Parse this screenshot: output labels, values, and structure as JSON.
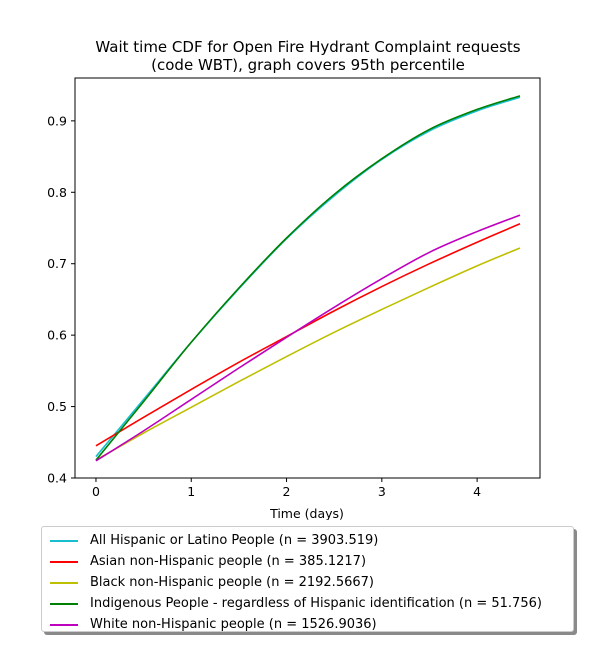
{
  "chart_data": {
    "type": "line",
    "title_line1": "Wait time CDF for Open Fire Hydrant Complaint  requests",
    "title_line2": "(code WBT), graph covers 95th percentile",
    "xlabel": "Time (days)",
    "ylabel": "",
    "xlim": [
      -0.22,
      4.66
    ],
    "ylim": [
      0.4,
      0.96
    ],
    "xticks": [
      0,
      1,
      2,
      3,
      4
    ],
    "yticks": [
      0.4,
      0.5,
      0.6,
      0.7,
      0.8,
      0.9
    ],
    "legend_position": "below",
    "x": [
      0,
      0.5,
      1,
      1.5,
      2,
      2.5,
      3,
      3.5,
      4,
      4.45
    ],
    "series": [
      {
        "name": "All Hispanic or Latino People (n = 3903.519)",
        "color": "#17becf",
        "values": [
          0.43,
          0.51,
          0.59,
          0.665,
          0.735,
          0.795,
          0.846,
          0.886,
          0.914,
          0.933
        ]
      },
      {
        "name": "Asian non-Hispanic people (n = 385.1217)",
        "color": "#ff0000",
        "values": [
          0.445,
          0.485,
          0.524,
          0.562,
          0.598,
          0.634,
          0.668,
          0.7,
          0.73,
          0.756
        ]
      },
      {
        "name": "Black non-Hispanic people (n = 2192.5667)",
        "color": "#bfbf00",
        "values": [
          0.425,
          0.463,
          0.499,
          0.535,
          0.57,
          0.604,
          0.636,
          0.667,
          0.697,
          0.722
        ]
      },
      {
        "name": "Indigenous People - regardless of Hispanic identification (n = 51.756)",
        "color": "#008000",
        "values": [
          0.425,
          0.507,
          0.59,
          0.666,
          0.736,
          0.797,
          0.847,
          0.888,
          0.916,
          0.935
        ]
      },
      {
        "name": "White non-Hispanic people (n = 1526.9036)",
        "color": "#bf00bf",
        "values": [
          0.424,
          0.466,
          0.51,
          0.554,
          0.597,
          0.639,
          0.679,
          0.716,
          0.745,
          0.768
        ]
      }
    ]
  }
}
